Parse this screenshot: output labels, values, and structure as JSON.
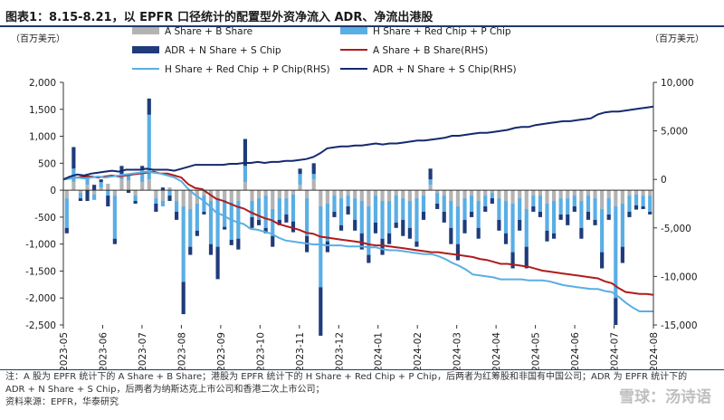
{
  "title": "图表1：8.15-8.21，以 EPFR 口径统计的配置型外资净流入 ADR、净流出港股",
  "unit_left": "（百万美元）",
  "unit_right": "（百万美元）",
  "notes": [
    "注：A 股为 EPFR 统计下的 A Share + B Share；港股为 EPFR 统计下的 H Share + Red Chip + P Chip，后两者为红筹股和非国有中国公司；ADR 为 EPFR 统计下的",
    "ADR + N Share + S Chip，后两者为纳斯达克上市公司和香港二次上市公司；",
    "资料来源：EPFR，华泰研究"
  ],
  "watermark": "雪球：汤诗语",
  "colors": {
    "a_share_bar": "#b3b3b3",
    "h_share_bar": "#5aaee4",
    "adr_bar": "#1f3b7a",
    "a_share_line": "#b01c1c",
    "h_share_line": "#5aaee4",
    "adr_line": "#142a6e"
  },
  "chart_data": {
    "type": "bar",
    "x_tick_labels": [
      "2023-05",
      "2023-06",
      "2023-07",
      "2023-08",
      "2023-09",
      "2023-10",
      "2023-11",
      "2023-12",
      "2024-01",
      "2024-02",
      "2024-03",
      "2024-04",
      "2024-05",
      "2024-06",
      "2024-07",
      "2024-08"
    ],
    "left_axis": {
      "ylim": [
        -2500,
        2000
      ],
      "ticks": [
        "-2,500",
        "-2,000",
        "-1,500",
        "-1,000",
        "-500",
        "0",
        "500",
        "1,000",
        "1,500",
        "2,000"
      ]
    },
    "right_axis": {
      "ylim": [
        -15000,
        10000
      ],
      "ticks": [
        "-15,000",
        "-10,000",
        "-5,000",
        "0",
        "5,000",
        "10,000"
      ]
    },
    "series": [
      {
        "name": "A Share + B Share",
        "kind": "bar",
        "values": [
          -150,
          150,
          -50,
          100,
          -80,
          50,
          120,
          -100,
          200,
          180,
          -100,
          150,
          200,
          -150,
          -200,
          50,
          -200,
          -300,
          -350,
          -250,
          -100,
          -200,
          -150,
          -180,
          -220,
          -200,
          150,
          -200,
          -150,
          -100,
          -350,
          -150,
          -150,
          -80,
          100,
          -150,
          200,
          -300,
          -250,
          -100,
          -150,
          -100,
          -150,
          -200,
          -300,
          -100,
          -200,
          -200,
          -100,
          -150,
          -200,
          -150,
          -100,
          100,
          -50,
          -100,
          -200,
          -300,
          -150,
          -100,
          -200,
          -100,
          -50,
          -150,
          -200,
          -250,
          -150,
          -350,
          -100,
          -100,
          -250,
          -200,
          -150,
          -150,
          -100,
          -200,
          -100,
          -150,
          -350,
          -150,
          -300,
          -250,
          -100,
          -80,
          -100,
          -100
        ]
      },
      {
        "name": "H Share + Red Chip + P Chip",
        "kind": "bar",
        "values": [
          -550,
          250,
          -100,
          200,
          -100,
          100,
          -100,
          -800,
          100,
          100,
          -100,
          250,
          1200,
          -100,
          -100,
          -100,
          -200,
          -1400,
          -700,
          -500,
          -300,
          -800,
          -900,
          -500,
          -700,
          -700,
          300,
          -300,
          -400,
          -600,
          -500,
          -400,
          -300,
          -500,
          200,
          -700,
          100,
          -1500,
          -700,
          -300,
          -500,
          -200,
          -400,
          -600,
          -900,
          -500,
          -700,
          -600,
          -500,
          -400,
          -500,
          -800,
          -300,
          100,
          -200,
          -300,
          -500,
          -700,
          -400,
          -300,
          -500,
          -200,
          -100,
          -400,
          -600,
          -900,
          -400,
          -700,
          -200,
          -300,
          -500,
          -600,
          -300,
          -300,
          -200,
          -500,
          -300,
          -400,
          -800,
          -300,
          -1700,
          -800,
          -300,
          -200,
          -200,
          -300
        ]
      },
      {
        "name": "ADR + N Share + S Chip",
        "kind": "bar",
        "values": [
          -100,
          400,
          -50,
          -200,
          100,
          50,
          -200,
          -100,
          150,
          -50,
          -50,
          50,
          300,
          -150,
          50,
          -100,
          -150,
          -600,
          -150,
          -100,
          -50,
          -200,
          -600,
          -50,
          -100,
          -200,
          500,
          -200,
          -100,
          -100,
          -200,
          -100,
          -150,
          -200,
          100,
          -300,
          200,
          -900,
          -200,
          -100,
          -100,
          -150,
          -200,
          -300,
          -150,
          -200,
          -300,
          -200,
          -100,
          -300,
          -200,
          -100,
          -150,
          200,
          -100,
          -200,
          -300,
          -300,
          -250,
          -100,
          -200,
          -100,
          -100,
          -200,
          -200,
          -300,
          -200,
          -400,
          -100,
          -100,
          -200,
          -100,
          -100,
          -200,
          -100,
          -200,
          -150,
          -100,
          -300,
          -100,
          -500,
          -300,
          -100,
          -80,
          -50,
          -50
        ]
      },
      {
        "name": "A Share + B Share(RHS)",
        "kind": "line",
        "values": [
          0,
          100,
          200,
          300,
          300,
          200,
          300,
          400,
          300,
          400,
          500,
          600,
          700,
          800,
          600,
          600,
          400,
          200,
          -500,
          -900,
          -1000,
          -1500,
          -2000,
          -2200,
          -2500,
          -2800,
          -3000,
          -3400,
          -3700,
          -4000,
          -4200,
          -4600,
          -4800,
          -5000,
          -5200,
          -5500,
          -5600,
          -5900,
          -6000,
          -6100,
          -6200,
          -6300,
          -6400,
          -6500,
          -6700,
          -6800,
          -6800,
          -6900,
          -7000,
          -7100,
          -7200,
          -7300,
          -7400,
          -7500,
          -7500,
          -7600,
          -7700,
          -7800,
          -7900,
          -8000,
          -8200,
          -8300,
          -8500,
          -8700,
          -8700,
          -8800,
          -8900,
          -9000,
          -9200,
          -9400,
          -9500,
          -9600,
          -9700,
          -9800,
          -9900,
          -10000,
          -10100,
          -10200,
          -10500,
          -10700,
          -11200,
          -11600,
          -11700,
          -11800,
          -11800,
          -11900
        ]
      },
      {
        "name": "H Share + Red Chip + P Chip(RHS)",
        "kind": "line",
        "values": [
          0,
          100,
          200,
          100,
          200,
          300,
          200,
          300,
          400,
          500,
          600,
          700,
          800,
          700,
          600,
          400,
          200,
          -200,
          -1000,
          -1600,
          -2100,
          -2700,
          -3400,
          -3700,
          -4100,
          -4400,
          -4600,
          -5100,
          -5200,
          -5400,
          -5600,
          -6000,
          -6300,
          -6400,
          -6500,
          -6600,
          -6700,
          -6700,
          -6800,
          -6800,
          -6800,
          -6900,
          -6900,
          -6900,
          -7000,
          -7000,
          -7200,
          -7300,
          -7300,
          -7400,
          -7500,
          -7600,
          -7700,
          -7700,
          -7900,
          -8200,
          -8600,
          -8900,
          -9300,
          -9800,
          -9900,
          -10000,
          -10100,
          -10300,
          -10300,
          -10300,
          -10300,
          -10400,
          -10400,
          -10400,
          -10500,
          -10700,
          -10900,
          -11000,
          -11100,
          -11200,
          -11300,
          -11300,
          -11500,
          -11600,
          -12100,
          -12700,
          -13200,
          -13600,
          -13600,
          -13600
        ]
      },
      {
        "name": "ADR + N Share + S Chip(RHS)",
        "kind": "line",
        "values": [
          0,
          300,
          500,
          400,
          600,
          700,
          800,
          900,
          800,
          1000,
          1000,
          1000,
          1100,
          1000,
          1000,
          1000,
          900,
          1100,
          1300,
          1500,
          1500,
          1500,
          1500,
          1500,
          1600,
          1600,
          1700,
          1700,
          1800,
          1700,
          1800,
          1800,
          1900,
          1900,
          2000,
          2100,
          2300,
          2700,
          3200,
          3300,
          3400,
          3400,
          3500,
          3500,
          3600,
          3700,
          3600,
          3700,
          3700,
          3800,
          3900,
          4000,
          4000,
          4100,
          4200,
          4300,
          4500,
          4500,
          4600,
          4700,
          4800,
          4800,
          4900,
          5000,
          5100,
          5300,
          5400,
          5400,
          5600,
          5700,
          5800,
          5900,
          6000,
          6000,
          6100,
          6200,
          6300,
          6700,
          6900,
          7000,
          7000,
          7100,
          7200,
          7300,
          7400,
          7500
        ]
      }
    ]
  }
}
